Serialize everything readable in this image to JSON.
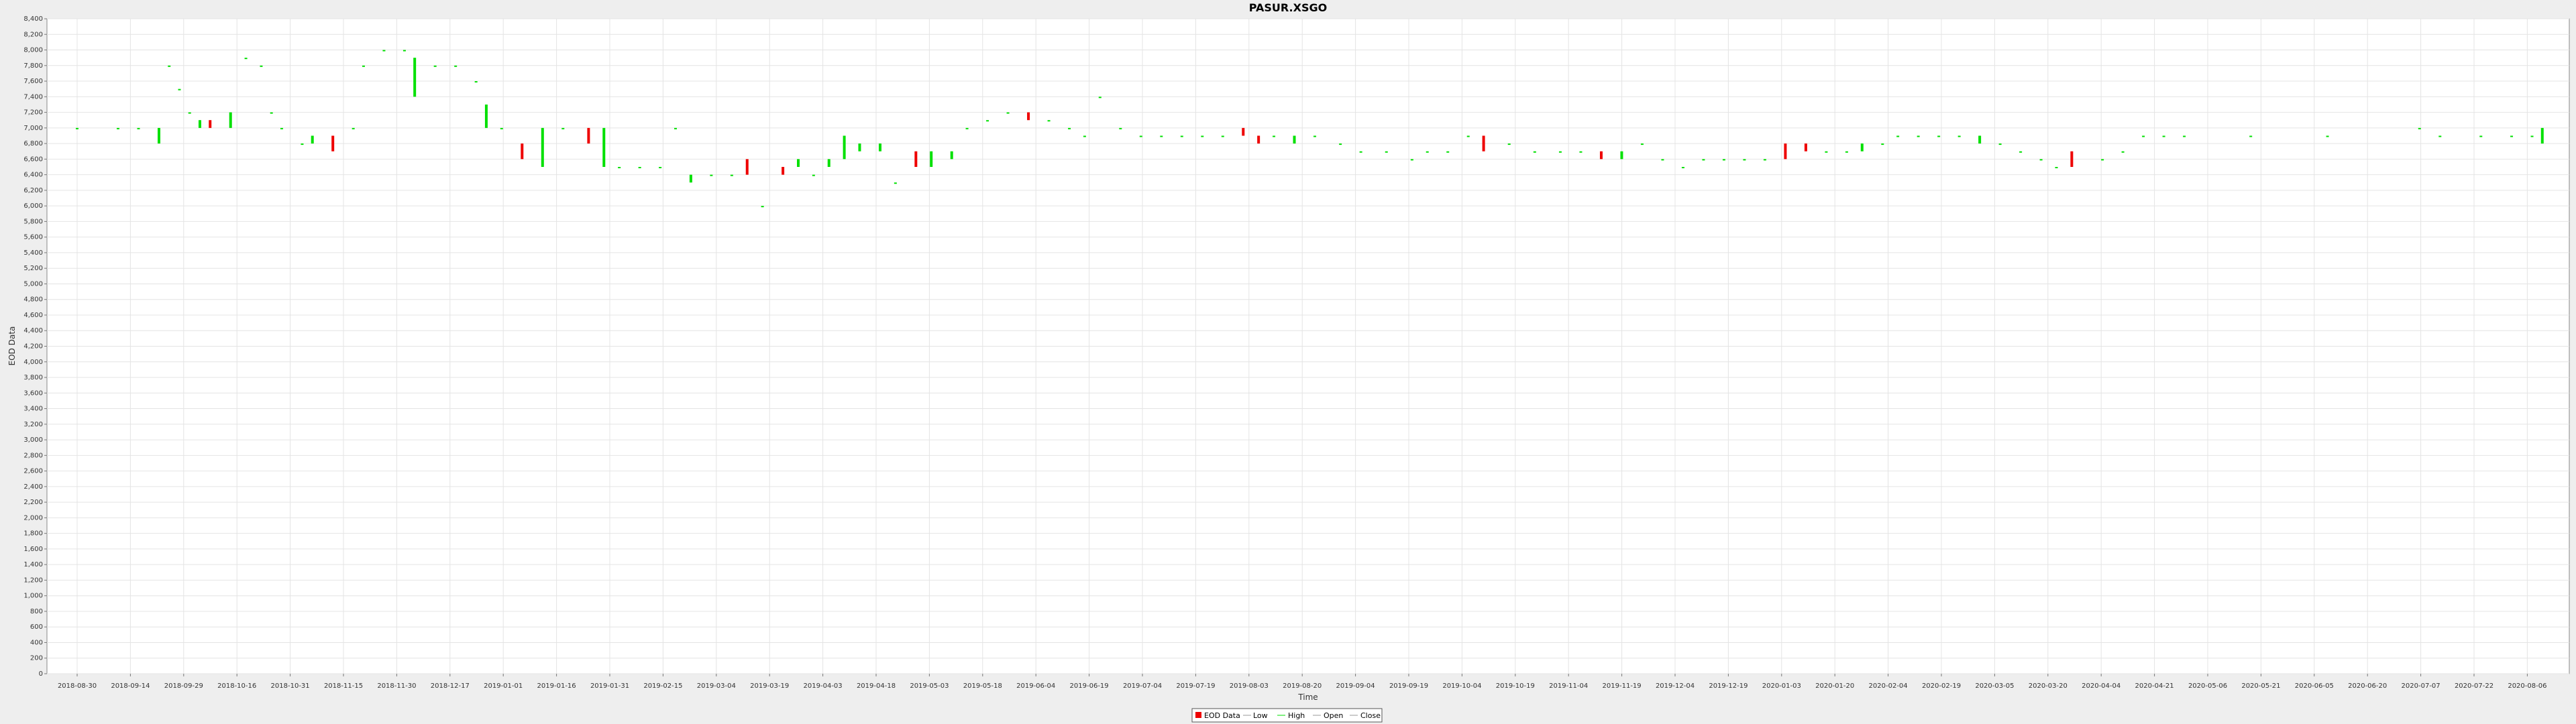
{
  "chart_data": {
    "type": "candlestick",
    "title": "PASUR.XSGO",
    "xlabel": "Time",
    "ylabel": "EOD Data",
    "ylim": [
      0,
      8400
    ],
    "ytick_step": 200,
    "x_tick_labels": [
      "2018-08-30",
      "2018-09-14",
      "2018-09-29",
      "2018-10-16",
      "2018-10-31",
      "2018-11-15",
      "2018-11-30",
      "2018-12-17",
      "2019-01-01",
      "2019-01-16",
      "2019-01-31",
      "2019-02-15",
      "2019-03-04",
      "2019-03-19",
      "2019-04-03",
      "2019-04-18",
      "2019-05-03",
      "2019-05-18",
      "2019-06-04",
      "2019-06-19",
      "2019-07-04",
      "2019-07-19",
      "2019-08-03",
      "2019-08-20",
      "2019-09-04",
      "2019-09-19",
      "2019-10-04",
      "2019-10-19",
      "2019-11-04",
      "2019-11-19",
      "2019-12-04",
      "2019-12-19",
      "2020-01-03",
      "2020-01-20",
      "2020-02-04",
      "2020-02-19",
      "2020-03-05",
      "2020-03-20",
      "2020-04-04",
      "2020-04-21",
      "2020-05-06",
      "2020-05-21",
      "2020-06-05",
      "2020-06-20",
      "2020-07-07",
      "2020-07-22",
      "2020-08-06"
    ],
    "grid": true,
    "legend_position": "bottom",
    "legend": [
      "EOD Data",
      "Low",
      "High",
      "Open",
      "Close"
    ],
    "up_color": "#00e000",
    "down_color": "#ee0000",
    "candles": [
      {
        "t": 0,
        "o": 7000,
        "c": 7000
      },
      {
        "t": 8,
        "o": 7000,
        "c": 7000
      },
      {
        "t": 12,
        "o": 7000,
        "c": 7000
      },
      {
        "t": 16,
        "o": 6800,
        "c": 7000
      },
      {
        "t": 18,
        "o": 7800,
        "c": 7800
      },
      {
        "t": 20,
        "o": 7500,
        "c": 7500
      },
      {
        "t": 22,
        "o": 7200,
        "c": 7200
      },
      {
        "t": 24,
        "o": 7000,
        "c": 7100
      },
      {
        "t": 26,
        "o": 7100,
        "c": 7000
      },
      {
        "t": 30,
        "o": 7000,
        "c": 7200
      },
      {
        "t": 33,
        "o": 7900,
        "c": 7900
      },
      {
        "t": 36,
        "o": 7800,
        "c": 7800
      },
      {
        "t": 38,
        "o": 7200,
        "c": 7200
      },
      {
        "t": 40,
        "o": 7000,
        "c": 7000
      },
      {
        "t": 44,
        "o": 6800,
        "c": 6800
      },
      {
        "t": 46,
        "o": 6800,
        "c": 6900
      },
      {
        "t": 50,
        "o": 6900,
        "c": 6700
      },
      {
        "t": 54,
        "o": 7000,
        "c": 7000
      },
      {
        "t": 56,
        "o": 7800,
        "c": 7800
      },
      {
        "t": 60,
        "o": 8000,
        "c": 8000
      },
      {
        "t": 64,
        "o": 8000,
        "c": 8000
      },
      {
        "t": 66,
        "o": 7400,
        "c": 7900
      },
      {
        "t": 70,
        "o": 7800,
        "c": 7800
      },
      {
        "t": 74,
        "o": 7800,
        "c": 7800
      },
      {
        "t": 78,
        "o": 7600,
        "c": 7600
      },
      {
        "t": 80,
        "o": 7000,
        "c": 7300
      },
      {
        "t": 83,
        "o": 7000,
        "c": 7000
      },
      {
        "t": 87,
        "o": 6800,
        "c": 6600
      },
      {
        "t": 91,
        "o": 6500,
        "c": 7000
      },
      {
        "t": 95,
        "o": 7000,
        "c": 7000
      },
      {
        "t": 100,
        "o": 7000,
        "c": 6800
      },
      {
        "t": 103,
        "o": 6500,
        "c": 7000
      },
      {
        "t": 106,
        "o": 6500,
        "c": 6500
      },
      {
        "t": 110,
        "o": 6500,
        "c": 6500
      },
      {
        "t": 114,
        "o": 6500,
        "c": 6500
      },
      {
        "t": 117,
        "o": 7000,
        "c": 7000
      },
      {
        "t": 120,
        "o": 6300,
        "c": 6400
      },
      {
        "t": 124,
        "o": 6400,
        "c": 6400
      },
      {
        "t": 128,
        "o": 6400,
        "c": 6400
      },
      {
        "t": 131,
        "o": 6600,
        "c": 6400
      },
      {
        "t": 134,
        "o": 6000,
        "c": 6000
      },
      {
        "t": 138,
        "o": 6500,
        "c": 6400
      },
      {
        "t": 141,
        "o": 6500,
        "c": 6600
      },
      {
        "t": 144,
        "o": 6400,
        "c": 6400
      },
      {
        "t": 147,
        "o": 6500,
        "c": 6600
      },
      {
        "t": 150,
        "o": 6600,
        "c": 6900
      },
      {
        "t": 153,
        "o": 6700,
        "c": 6800
      },
      {
        "t": 157,
        "o": 6700,
        "c": 6800
      },
      {
        "t": 160,
        "o": 6300,
        "c": 6300
      },
      {
        "t": 164,
        "o": 6700,
        "c": 6500
      },
      {
        "t": 167,
        "o": 6500,
        "c": 6700
      },
      {
        "t": 171,
        "o": 6600,
        "c": 6700
      },
      {
        "t": 174,
        "o": 7000,
        "c": 7000
      },
      {
        "t": 178,
        "o": 7100,
        "c": 7100
      },
      {
        "t": 182,
        "o": 7200,
        "c": 7200
      },
      {
        "t": 186,
        "o": 7200,
        "c": 7100
      },
      {
        "t": 190,
        "o": 7100,
        "c": 7100
      },
      {
        "t": 194,
        "o": 7000,
        "c": 7000
      },
      {
        "t": 197,
        "o": 6900,
        "c": 6900
      },
      {
        "t": 200,
        "o": 7400,
        "c": 7400
      },
      {
        "t": 204,
        "o": 7000,
        "c": 7000
      },
      {
        "t": 208,
        "o": 6900,
        "c": 6900
      },
      {
        "t": 212,
        "o": 6900,
        "c": 6900
      },
      {
        "t": 216,
        "o": 6900,
        "c": 6900
      },
      {
        "t": 220,
        "o": 6900,
        "c": 6900
      },
      {
        "t": 224,
        "o": 6900,
        "c": 6900
      },
      {
        "t": 228,
        "o": 7000,
        "c": 6900
      },
      {
        "t": 231,
        "o": 6900,
        "c": 6800
      },
      {
        "t": 234,
        "o": 6900,
        "c": 6900
      },
      {
        "t": 238,
        "o": 6800,
        "c": 6900
      },
      {
        "t": 242,
        "o": 6900,
        "c": 6900
      },
      {
        "t": 247,
        "o": 6800,
        "c": 6800
      },
      {
        "t": 251,
        "o": 6700,
        "c": 6700
      },
      {
        "t": 256,
        "o": 6700,
        "c": 6700
      },
      {
        "t": 261,
        "o": 6600,
        "c": 6600
      },
      {
        "t": 264,
        "o": 6700,
        "c": 6700
      },
      {
        "t": 268,
        "o": 6700,
        "c": 6700
      },
      {
        "t": 272,
        "o": 6900,
        "c": 6900
      },
      {
        "t": 275,
        "o": 6900,
        "c": 6700
      },
      {
        "t": 280,
        "o": 6800,
        "c": 6800
      },
      {
        "t": 285,
        "o": 6700,
        "c": 6700
      },
      {
        "t": 290,
        "o": 6700,
        "c": 6700
      },
      {
        "t": 294,
        "o": 6700,
        "c": 6700
      },
      {
        "t": 298,
        "o": 6700,
        "c": 6600
      },
      {
        "t": 302,
        "o": 6600,
        "c": 6700
      },
      {
        "t": 306,
        "o": 6800,
        "c": 6800
      },
      {
        "t": 310,
        "o": 6600,
        "c": 6600
      },
      {
        "t": 314,
        "o": 6500,
        "c": 6500
      },
      {
        "t": 318,
        "o": 6600,
        "c": 6600
      },
      {
        "t": 322,
        "o": 6600,
        "c": 6600
      },
      {
        "t": 326,
        "o": 6600,
        "c": 6600
      },
      {
        "t": 330,
        "o": 6600,
        "c": 6600
      },
      {
        "t": 334,
        "o": 6800,
        "c": 6600
      },
      {
        "t": 338,
        "o": 6800,
        "c": 6700
      },
      {
        "t": 342,
        "o": 6700,
        "c": 6700
      },
      {
        "t": 346,
        "o": 6700,
        "c": 6700
      },
      {
        "t": 349,
        "o": 6700,
        "c": 6800
      },
      {
        "t": 353,
        "o": 6800,
        "c": 6800
      },
      {
        "t": 356,
        "o": 6900,
        "c": 6900
      },
      {
        "t": 360,
        "o": 6900,
        "c": 6900
      },
      {
        "t": 364,
        "o": 6900,
        "c": 6900
      },
      {
        "t": 368,
        "o": 6900,
        "c": 6900
      },
      {
        "t": 372,
        "o": 6800,
        "c": 6900
      },
      {
        "t": 376,
        "o": 6800,
        "c": 6800
      },
      {
        "t": 380,
        "o": 6700,
        "c": 6700
      },
      {
        "t": 384,
        "o": 6600,
        "c": 6600
      },
      {
        "t": 387,
        "o": 6500,
        "c": 6500
      },
      {
        "t": 390,
        "o": 6700,
        "c": 6500
      },
      {
        "t": 396,
        "o": 6600,
        "c": 6600
      },
      {
        "t": 400,
        "o": 6700,
        "c": 6700
      },
      {
        "t": 404,
        "o": 6900,
        "c": 6900
      },
      {
        "t": 408,
        "o": 6900,
        "c": 6900
      },
      {
        "t": 412,
        "o": 6900,
        "c": 6900
      },
      {
        "t": 425,
        "o": 6900,
        "c": 6900
      },
      {
        "t": 440,
        "o": 6900,
        "c": 6900
      },
      {
        "t": 458,
        "o": 7000,
        "c": 7000
      },
      {
        "t": 462,
        "o": 6900,
        "c": 6900
      },
      {
        "t": 470,
        "o": 6900,
        "c": 6900
      },
      {
        "t": 476,
        "o": 6900,
        "c": 6900
      },
      {
        "t": 480,
        "o": 6900,
        "c": 6900
      },
      {
        "t": 482,
        "o": 6800,
        "c": 7000
      }
    ]
  }
}
